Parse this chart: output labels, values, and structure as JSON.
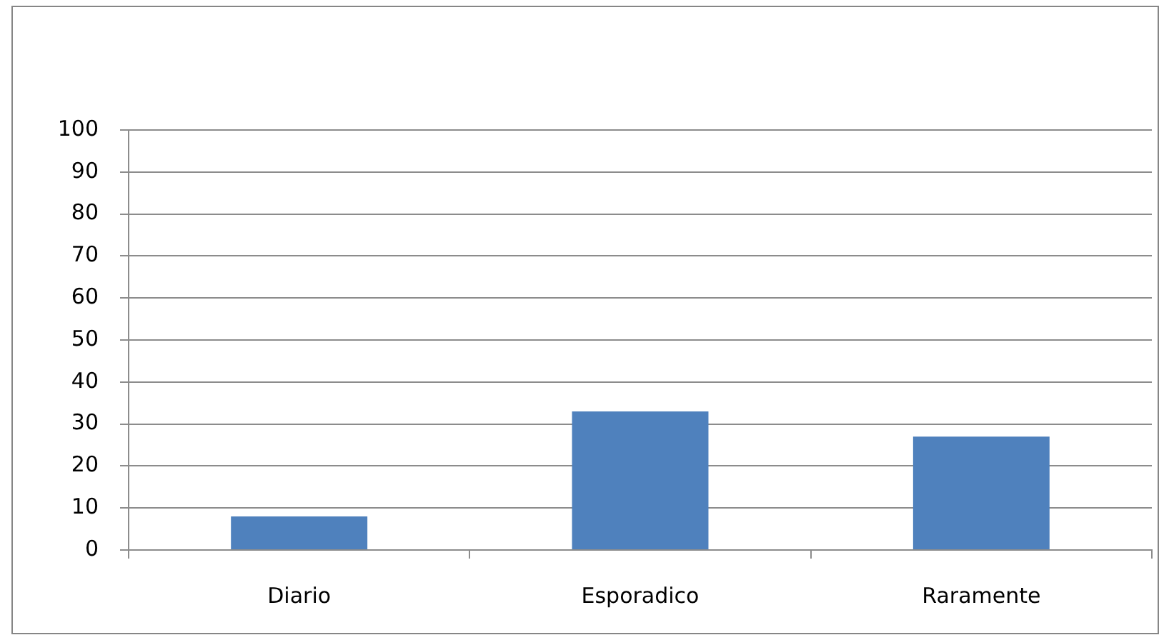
{
  "chart_data": {
    "type": "bar",
    "categories": [
      "Diario",
      "Esporadico",
      "Raramente"
    ],
    "values": [
      8,
      33,
      27
    ],
    "color": "#4f81bd",
    "ylim": [
      0,
      100
    ],
    "yticks": [
      0,
      10,
      20,
      30,
      40,
      50,
      60,
      70,
      80,
      90,
      100
    ],
    "grid": "y"
  }
}
